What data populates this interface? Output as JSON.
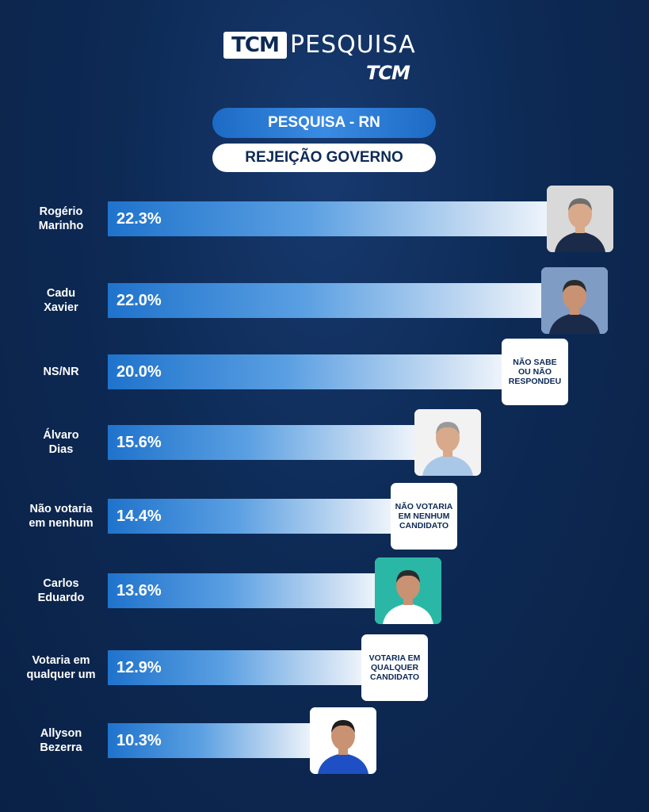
{
  "logo": {
    "tcm_box": "TCM",
    "pesquisa": "PESQUISA",
    "tcm_sub": "TCM"
  },
  "header": {
    "pill": "PESQUISA - RN",
    "subtitle": "REJEIÇÃO GOVERNO"
  },
  "chart_data": {
    "type": "bar",
    "orientation": "horizontal",
    "title": "REJEIÇÃO GOVERNO",
    "categories": [
      "Rogério Marinho",
      "Cadu Xavier",
      "NS/NR",
      "Álvaro Dias",
      "Não votaria em nenhum",
      "Carlos Eduardo",
      "Votaria em qualquer um",
      "Allyson Bezerra"
    ],
    "values": [
      22.3,
      22.0,
      20.0,
      15.6,
      14.4,
      13.6,
      12.9,
      10.3
    ],
    "value_labels": [
      "22.3%",
      "22.0%",
      "20.0%",
      "15.6%",
      "14.4%",
      "13.6%",
      "12.9%",
      "10.3%"
    ],
    "xlim": [
      0,
      22.3
    ],
    "grid": false,
    "legend": "none"
  },
  "rows": [
    {
      "label_lines": [
        "Rogério",
        "Marinho"
      ],
      "card": "photo",
      "bg": "#d9d9d9",
      "suit": "#1b2a48",
      "skin": "#d8a98a",
      "hair": "#6e6e6e"
    },
    {
      "label_lines": [
        "Cadu",
        "Xavier"
      ],
      "card": "photo",
      "bg": "#7f9cc4",
      "suit": "#1b2a48",
      "skin": "#c99273",
      "hair": "#2b2b2b"
    },
    {
      "label_lines": [
        "NS/NR"
      ],
      "card": "text",
      "card_text": [
        "NÃO SABE",
        "OU NÃO",
        "RESPONDEU"
      ]
    },
    {
      "label_lines": [
        "Álvaro",
        "Dias"
      ],
      "card": "photo",
      "bg": "#f2f2f2",
      "suit": "#a9c8e8",
      "skin": "#d8a98a",
      "hair": "#9a9a9a"
    },
    {
      "label_lines": [
        "Não votaria",
        "em nenhum"
      ],
      "card": "text",
      "card_text": [
        "NÃO VOTARIA",
        "EM NENHUM",
        "CANDIDATO"
      ]
    },
    {
      "label_lines": [
        "Carlos",
        "Eduardo"
      ],
      "card": "photo",
      "bg": "#2bb7a6",
      "suit": "#ffffff",
      "skin": "#c99273",
      "hair": "#2b2b2b"
    },
    {
      "label_lines": [
        "Votaria em",
        "qualquer um"
      ],
      "card": "text",
      "card_text": [
        "VOTARIA EM",
        "QUALQUER",
        "CANDIDATO"
      ]
    },
    {
      "label_lines": [
        "Allyson",
        "Bezerra"
      ],
      "card": "photo",
      "bg": "#ffffff",
      "suit": "#1f4fc4",
      "skin": "#c99273",
      "hair": "#1e1e1e"
    }
  ]
}
